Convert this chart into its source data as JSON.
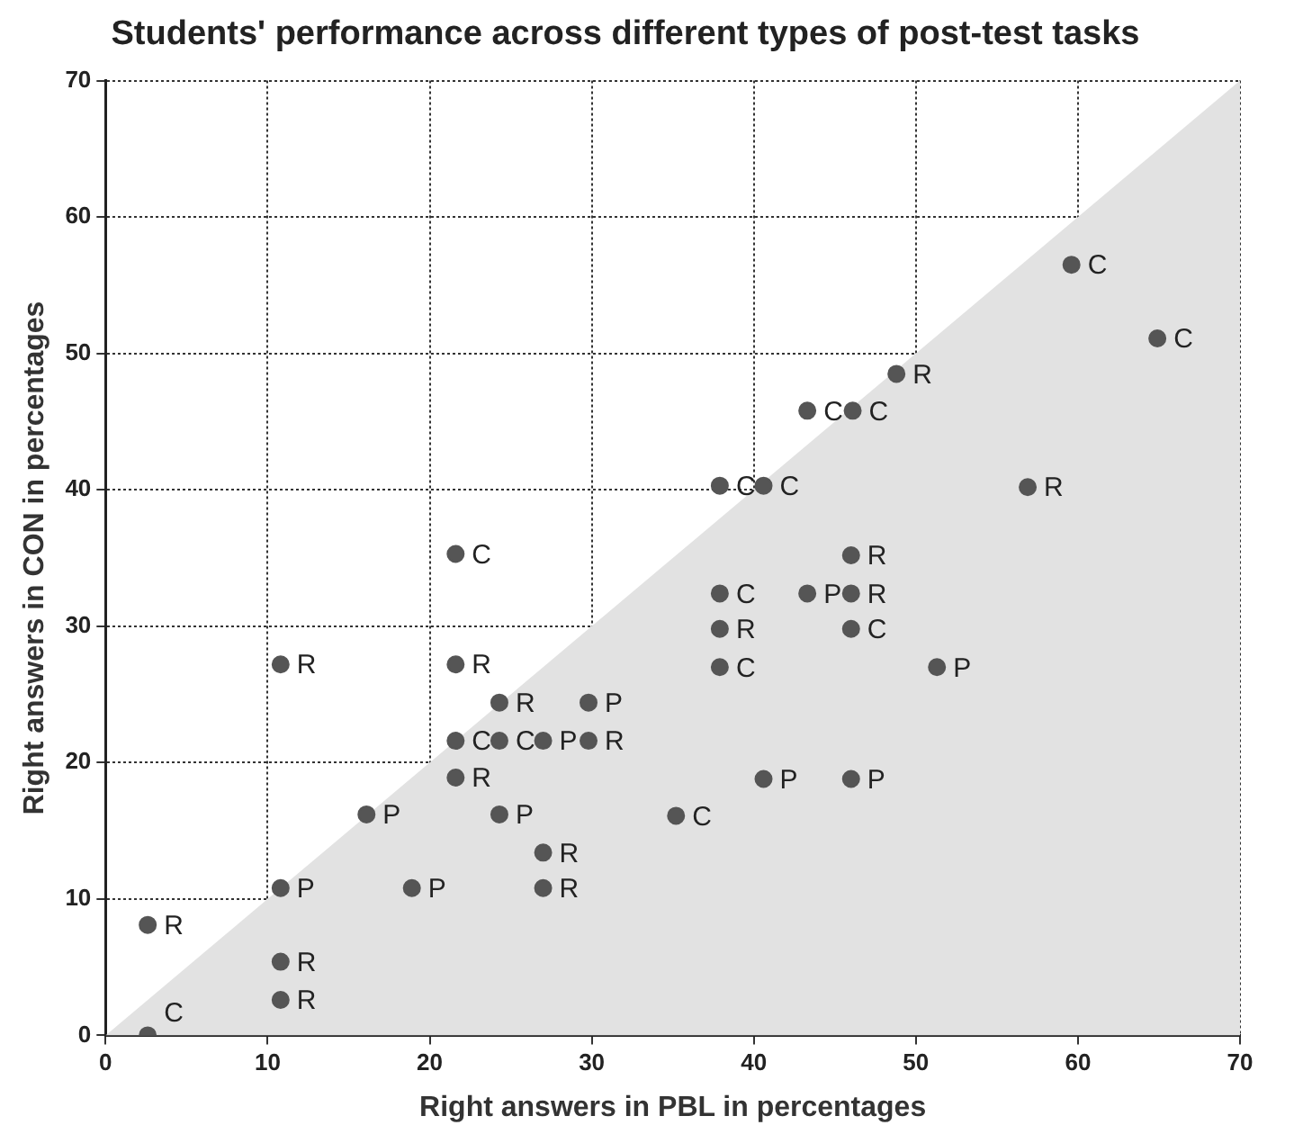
{
  "chart_data": {
    "type": "scatter",
    "title": "Students' performance across different types of post-test tasks",
    "xlabel": "Right answers in PBL in percentages",
    "ylabel": "Right answers in CON in percentages",
    "xlim": [
      0,
      70
    ],
    "xticks": [
      0,
      10,
      20,
      30,
      40,
      50,
      60,
      70
    ],
    "ylim": [
      0,
      70
    ],
    "yticks": [
      0,
      10,
      20,
      30,
      40,
      50,
      60,
      70
    ],
    "grid": true,
    "legend": false,
    "marker": "circle",
    "series": [
      {
        "type": "area",
        "color": "#e2e2e2",
        "marker": "none",
        "x": [
          0,
          70
        ],
        "values": [
          0,
          70
        ]
      },
      {
        "name": "R",
        "color": "#555555",
        "x": [
          2.6,
          10.8,
          10.8,
          27.0,
          27.0,
          21.6,
          29.8,
          24.3,
          10.8,
          21.6,
          37.9,
          46.0,
          46.0,
          56.9,
          48.8
        ],
        "values": [
          8.1,
          5.4,
          2.6,
          10.8,
          13.4,
          18.9,
          21.6,
          24.4,
          27.2,
          27.2,
          29.8,
          32.4,
          35.2,
          40.2,
          48.5
        ]
      },
      {
        "name": "C",
        "color": "#555555",
        "x": [
          2.6,
          35.2,
          21.6,
          24.3,
          37.9,
          46.0,
          37.9,
          21.6,
          37.9,
          40.6,
          43.3,
          46.1,
          59.6,
          64.9
        ],
        "values": [
          0,
          16.1,
          21.6,
          21.6,
          27.0,
          29.8,
          32.4,
          35.3,
          40.3,
          40.3,
          45.8,
          45.8,
          56.5,
          51.1
        ]
      },
      {
        "name": "P",
        "color": "#555555",
        "x": [
          10.8,
          18.9,
          16.1,
          24.3,
          40.6,
          46.0,
          27.0,
          29.8,
          51.3,
          43.3
        ],
        "values": [
          10.8,
          10.8,
          16.2,
          16.2,
          18.8,
          18.8,
          21.6,
          24.4,
          27.0,
          32.4
        ]
      }
    ]
  }
}
